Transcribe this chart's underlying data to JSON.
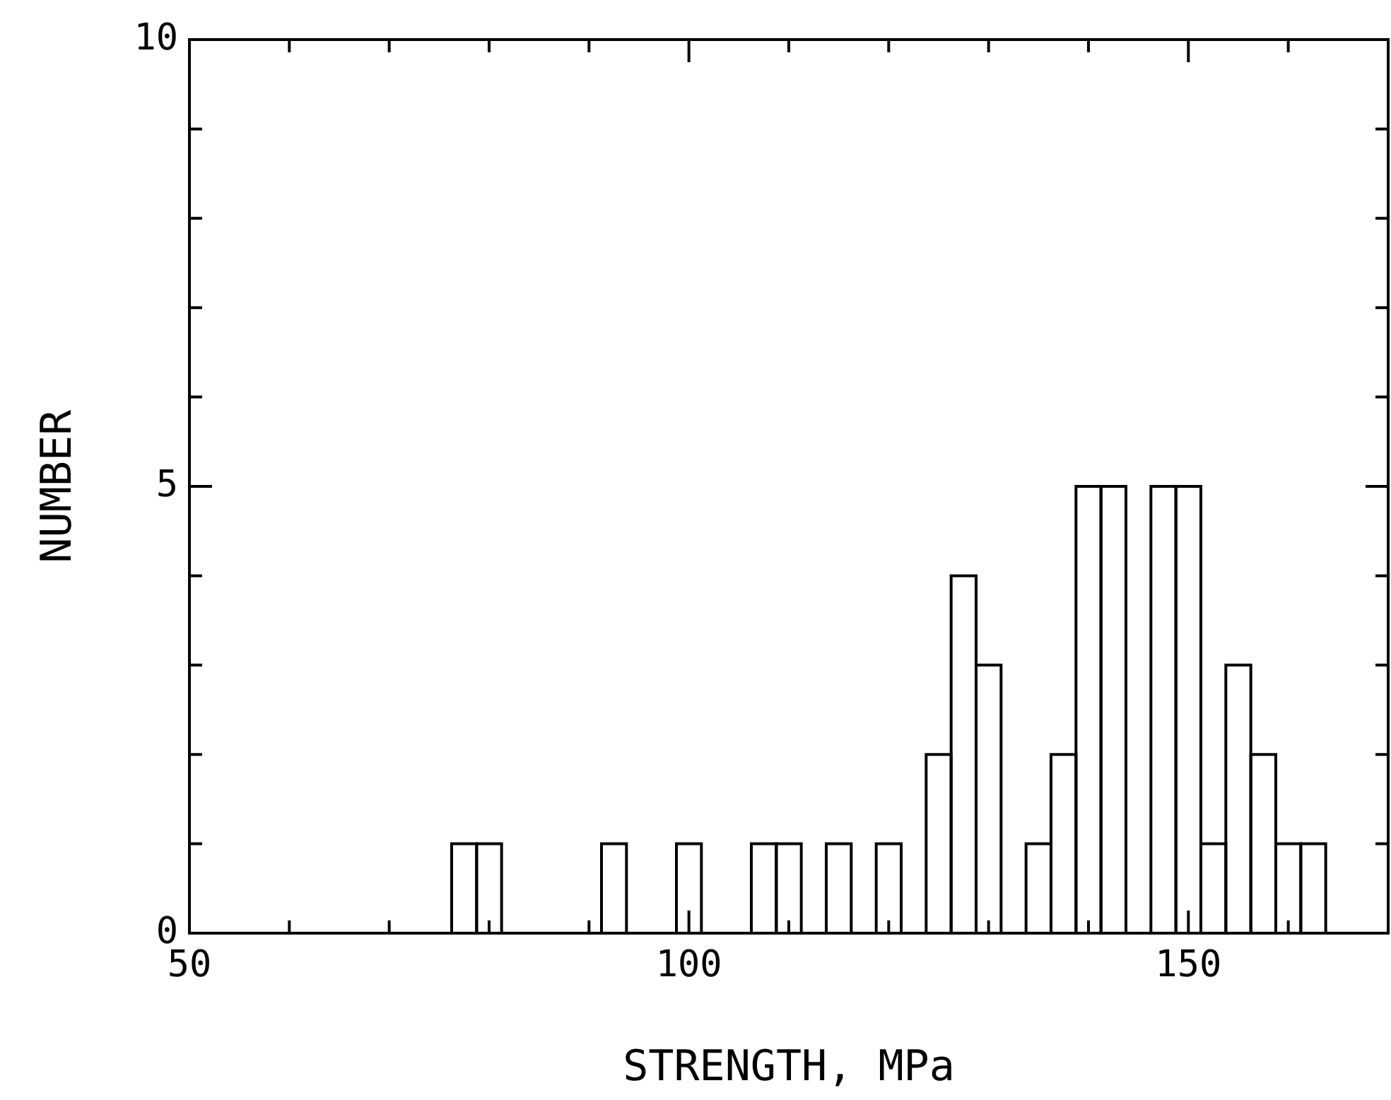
{
  "chart_data": {
    "type": "histogram",
    "xlabel": "STRENGTH, MPa",
    "ylabel": "NUMBER",
    "bins": [
      76.25,
      78.75,
      81.25,
      83.75,
      86.25,
      88.75,
      91.25,
      93.75,
      96.25,
      98.75,
      101.25,
      103.75,
      106.25,
      108.75,
      111.25,
      113.75,
      116.25,
      118.75,
      121.25,
      123.75,
      126.25,
      128.75,
      131.25,
      133.75,
      136.25,
      138.75,
      141.25,
      143.75,
      146.25,
      148.75,
      151.25,
      153.75,
      156.25,
      158.75,
      161.25,
      163.75
    ],
    "values": [
      1,
      1,
      0,
      0,
      0,
      0,
      1,
      0,
      0,
      1,
      0,
      0,
      1,
      1,
      0,
      1,
      0,
      1,
      0,
      2,
      4,
      3,
      0,
      1,
      2,
      5,
      5,
      0,
      5,
      5,
      1,
      3,
      2,
      1,
      1
    ],
    "color": "#000000",
    "xlim": [
      50,
      170
    ],
    "xticks": [
      50,
      {
        "value": 60,
        "label": null
      },
      {
        "value": 70,
        "label": null
      },
      {
        "value": 80,
        "label": null
      },
      {
        "value": 90,
        "label": null
      },
      100,
      {
        "value": 110,
        "label": null
      },
      {
        "value": 120,
        "label": null
      },
      {
        "value": 130,
        "label": null
      },
      {
        "value": 140,
        "label": null
      },
      150,
      {
        "value": 160,
        "label": null
      }
    ],
    "ylim": [
      0,
      10
    ],
    "yticks": [
      0,
      {
        "value": 1,
        "label": null
      },
      {
        "value": 2,
        "label": null
      },
      {
        "value": 3,
        "label": null
      },
      {
        "value": 4,
        "label": null
      },
      5,
      {
        "value": 6,
        "label": null
      },
      {
        "value": 7,
        "label": null
      },
      {
        "value": 8,
        "label": null
      },
      {
        "value": 9,
        "label": null
      },
      10
    ],
    "grid": false,
    "legend": false
  }
}
